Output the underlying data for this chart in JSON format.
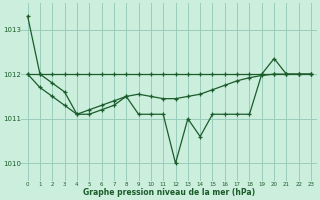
{
  "background_color": "#cceedd",
  "plot_bg_color": "#cceedd",
  "grid_color": "#99ccbb",
  "line_color": "#1a5c2a",
  "marker_color": "#1a5c2a",
  "ylim": [
    1009.6,
    1013.6
  ],
  "yticks": [
    1010,
    1011,
    1012,
    1013
  ],
  "ylabel_values": [
    "1010",
    "1011",
    "1012",
    "1013"
  ],
  "xlabel": "Graphe pression niveau de la mer (hPa)",
  "hours": [
    0,
    1,
    2,
    3,
    4,
    5,
    6,
    7,
    8,
    9,
    10,
    11,
    12,
    13,
    14,
    15,
    16,
    17,
    18,
    19,
    20,
    21,
    22,
    23
  ],
  "xtick_labels": [
    "0",
    "1",
    "2",
    "3",
    "4",
    "5",
    "6",
    "7",
    "8",
    "9",
    "10",
    "11",
    "12",
    "13",
    "14",
    "15",
    "16",
    "17",
    "18",
    "19",
    "20",
    "21",
    "22",
    "23"
  ],
  "series1": [
    1013.3,
    1012.0,
    1011.8,
    1011.6,
    1011.1,
    1011.1,
    1011.2,
    1011.3,
    1011.5,
    1011.1,
    1011.1,
    1011.1,
    1010.0,
    1011.0,
    1010.6,
    1011.1,
    1011.1,
    1011.1,
    1011.1,
    1012.0,
    1012.35,
    1012.0,
    1012.0,
    1012.0
  ],
  "series2": [
    1012.0,
    1012.0,
    1012.0,
    1012.0,
    1012.0,
    1012.0,
    1012.0,
    1012.0,
    1012.0,
    1012.0,
    1012.0,
    1012.0,
    1012.0,
    1012.0,
    1012.0,
    1012.0,
    1012.0,
    1012.0,
    1012.0,
    1012.0,
    1012.0,
    1012.0,
    1012.0,
    1012.0
  ],
  "series3": [
    1012.0,
    1011.7,
    1011.5,
    1011.3,
    1011.1,
    1011.2,
    1011.3,
    1011.4,
    1011.5,
    1011.55,
    1011.5,
    1011.45,
    1011.45,
    1011.5,
    1011.55,
    1011.65,
    1011.75,
    1011.85,
    1011.92,
    1011.97,
    1012.0,
    1012.0,
    1012.0,
    1012.0
  ],
  "figwidth": 3.2,
  "figheight": 2.0,
  "dpi": 100
}
